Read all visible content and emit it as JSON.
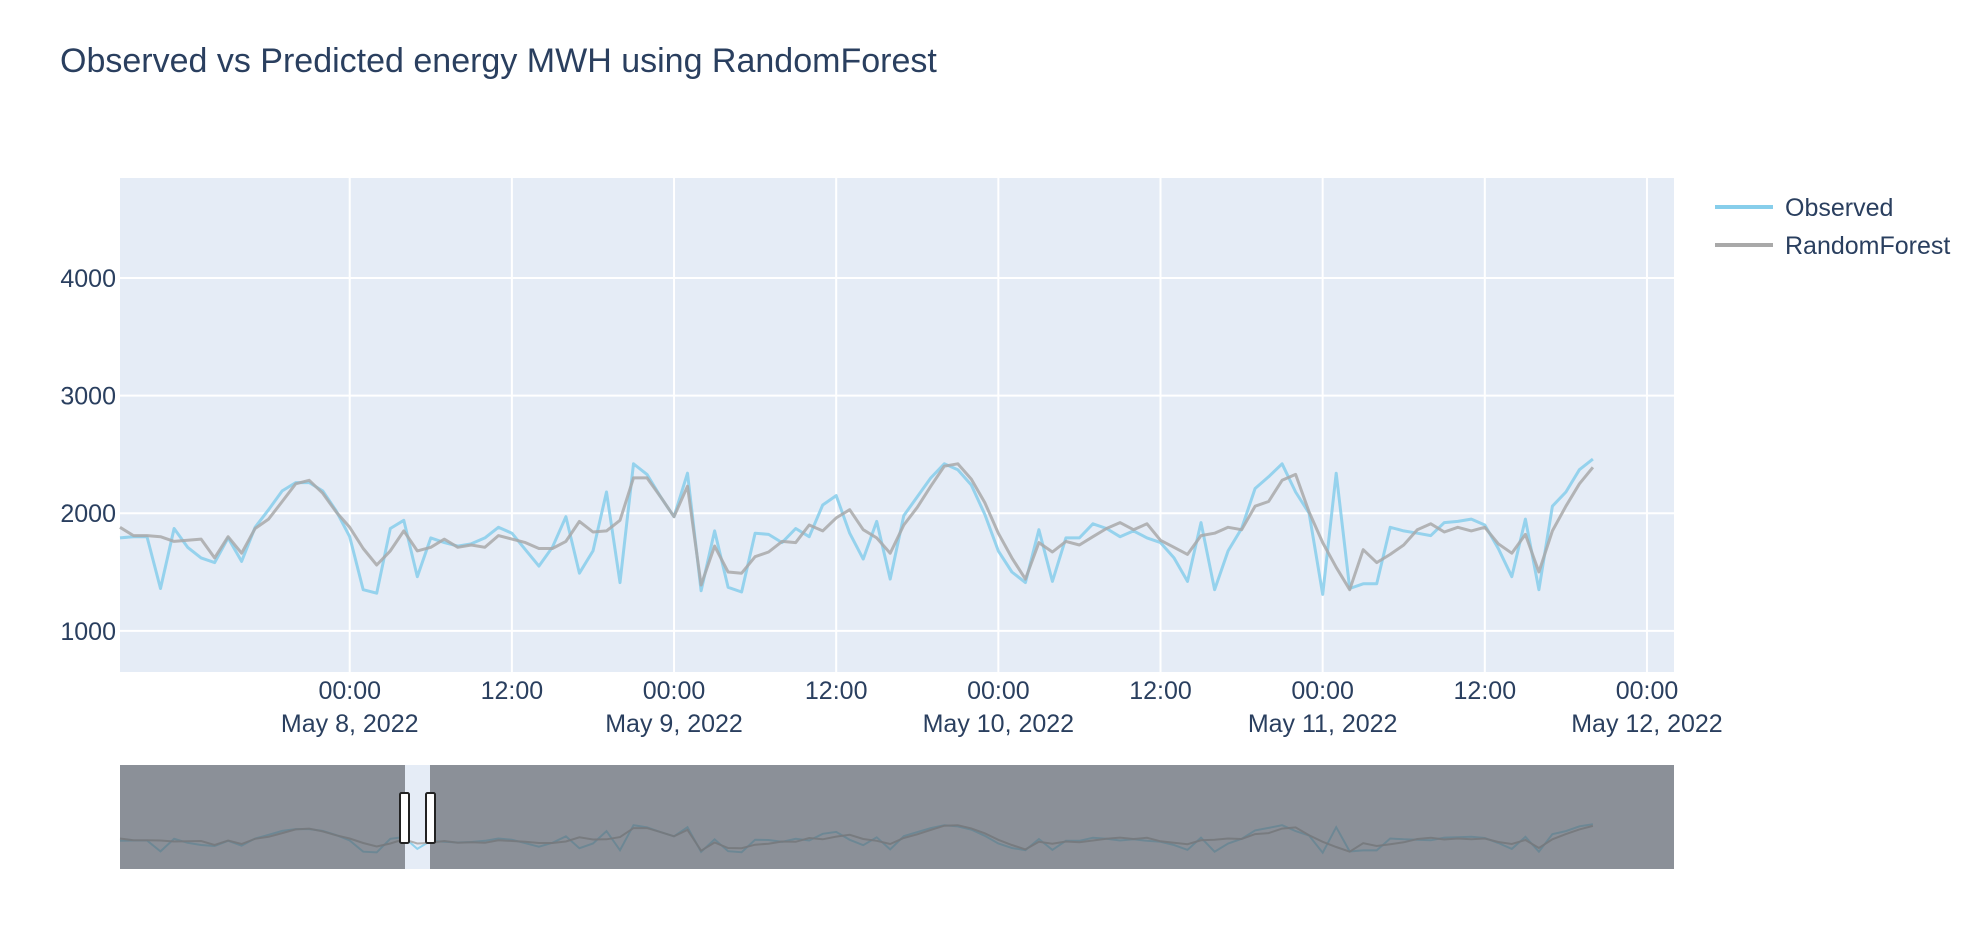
{
  "chart_data": {
    "type": "line",
    "title": "Observed vs Predicted energy MWH using RandomForest",
    "xlabel": "",
    "ylabel": "",
    "x_range": [
      "2022-05-07 07:00",
      "2022-05-12 02:00"
    ],
    "ylim": [
      650,
      4850
    ],
    "y_ticks": [
      1000,
      2000,
      3000,
      4000
    ],
    "x_ticks": [
      {
        "time": "2022-05-08 00:00",
        "label": "00:00",
        "date_label": "May 8, 2022"
      },
      {
        "time": "2022-05-08 12:00",
        "label": "12:00",
        "date_label": ""
      },
      {
        "time": "2022-05-09 00:00",
        "label": "00:00",
        "date_label": "May 9, 2022"
      },
      {
        "time": "2022-05-09 12:00",
        "label": "12:00",
        "date_label": ""
      },
      {
        "time": "2022-05-10 00:00",
        "label": "00:00",
        "date_label": "May 10, 2022"
      },
      {
        "time": "2022-05-10 12:00",
        "label": "12:00",
        "date_label": ""
      },
      {
        "time": "2022-05-11 00:00",
        "label": "00:00",
        "date_label": "May 11, 2022"
      },
      {
        "time": "2022-05-11 12:00",
        "label": "12:00",
        "date_label": ""
      },
      {
        "time": "2022-05-12 00:00",
        "label": "00:00",
        "date_label": "May 12, 2022"
      }
    ],
    "grid": true,
    "legend_position": "top-right",
    "series": [
      {
        "name": "Observed",
        "color": "#87ceeb",
        "points": [
          [
            "2022-05-07 07:00",
            1790
          ],
          [
            "2022-05-07 08:00",
            1800
          ],
          [
            "2022-05-07 09:00",
            1800
          ],
          [
            "2022-05-07 10:00",
            1360
          ],
          [
            "2022-05-07 11:00",
            1870
          ],
          [
            "2022-05-07 12:00",
            1710
          ],
          [
            "2022-05-07 13:00",
            1620
          ],
          [
            "2022-05-07 14:00",
            1580
          ],
          [
            "2022-05-07 15:00",
            1790
          ],
          [
            "2022-05-07 16:00",
            1590
          ],
          [
            "2022-05-07 17:00",
            1880
          ],
          [
            "2022-05-07 18:00",
            2030
          ],
          [
            "2022-05-07 19:00",
            2190
          ],
          [
            "2022-05-07 20:00",
            2260
          ],
          [
            "2022-05-07 21:00",
            2260
          ],
          [
            "2022-05-07 22:00",
            2190
          ],
          [
            "2022-05-07 23:00",
            2020
          ],
          [
            "2022-05-08 00:00",
            1800
          ],
          [
            "2022-05-08 01:00",
            1350
          ],
          [
            "2022-05-08 02:00",
            1320
          ],
          [
            "2022-05-08 03:00",
            1870
          ],
          [
            "2022-05-08 04:00",
            1940
          ],
          [
            "2022-05-08 05:00",
            1460
          ],
          [
            "2022-05-08 06:00",
            1790
          ],
          [
            "2022-05-08 07:00",
            1750
          ],
          [
            "2022-05-08 08:00",
            1720
          ],
          [
            "2022-05-08 09:00",
            1740
          ],
          [
            "2022-05-08 10:00",
            1790
          ],
          [
            "2022-05-08 11:00",
            1880
          ],
          [
            "2022-05-08 12:00",
            1830
          ],
          [
            "2022-05-08 13:00",
            1690
          ],
          [
            "2022-05-08 14:00",
            1550
          ],
          [
            "2022-05-08 15:00",
            1710
          ],
          [
            "2022-05-08 16:00",
            1970
          ],
          [
            "2022-05-08 17:00",
            1490
          ],
          [
            "2022-05-08 18:00",
            1680
          ],
          [
            "2022-05-08 19:00",
            2180
          ],
          [
            "2022-05-08 20:00",
            1410
          ],
          [
            "2022-05-08 21:00",
            2420
          ],
          [
            "2022-05-08 22:00",
            2330
          ],
          [
            "2022-05-08 23:00",
            2140
          ],
          [
            "2022-05-09 00:00",
            1970
          ],
          [
            "2022-05-09 01:00",
            2340
          ],
          [
            "2022-05-09 02:00",
            1340
          ],
          [
            "2022-05-09 03:00",
            1850
          ],
          [
            "2022-05-09 04:00",
            1370
          ],
          [
            "2022-05-09 05:00",
            1330
          ],
          [
            "2022-05-09 06:00",
            1830
          ],
          [
            "2022-05-09 07:00",
            1820
          ],
          [
            "2022-05-09 08:00",
            1750
          ],
          [
            "2022-05-09 09:00",
            1870
          ],
          [
            "2022-05-09 10:00",
            1800
          ],
          [
            "2022-05-09 11:00",
            2070
          ],
          [
            "2022-05-09 12:00",
            2150
          ],
          [
            "2022-05-09 13:00",
            1830
          ],
          [
            "2022-05-09 14:00",
            1610
          ],
          [
            "2022-05-09 15:00",
            1930
          ],
          [
            "2022-05-09 16:00",
            1440
          ],
          [
            "2022-05-09 17:00",
            1980
          ],
          [
            "2022-05-09 18:00",
            2140
          ],
          [
            "2022-05-09 19:00",
            2300
          ],
          [
            "2022-05-09 20:00",
            2420
          ],
          [
            "2022-05-09 21:00",
            2370
          ],
          [
            "2022-05-09 22:00",
            2240
          ],
          [
            "2022-05-09 23:00",
            1990
          ],
          [
            "2022-05-10 00:00",
            1680
          ],
          [
            "2022-05-10 01:00",
            1500
          ],
          [
            "2022-05-10 02:00",
            1410
          ],
          [
            "2022-05-10 03:00",
            1860
          ],
          [
            "2022-05-10 04:00",
            1420
          ],
          [
            "2022-05-10 05:00",
            1790
          ],
          [
            "2022-05-10 06:00",
            1790
          ],
          [
            "2022-05-10 07:00",
            1910
          ],
          [
            "2022-05-10 08:00",
            1870
          ],
          [
            "2022-05-10 09:00",
            1800
          ],
          [
            "2022-05-10 10:00",
            1850
          ],
          [
            "2022-05-10 11:00",
            1790
          ],
          [
            "2022-05-10 12:00",
            1750
          ],
          [
            "2022-05-10 13:00",
            1620
          ],
          [
            "2022-05-10 14:00",
            1420
          ],
          [
            "2022-05-10 15:00",
            1920
          ],
          [
            "2022-05-10 16:00",
            1350
          ],
          [
            "2022-05-10 17:00",
            1680
          ],
          [
            "2022-05-10 18:00",
            1870
          ],
          [
            "2022-05-10 19:00",
            2210
          ],
          [
            "2022-05-10 20:00",
            2310
          ],
          [
            "2022-05-10 21:00",
            2420
          ],
          [
            "2022-05-10 22:00",
            2180
          ],
          [
            "2022-05-10 23:00",
            2000
          ],
          [
            "2022-05-11 00:00",
            1310
          ],
          [
            "2022-05-11 01:00",
            2340
          ],
          [
            "2022-05-11 02:00",
            1360
          ],
          [
            "2022-05-11 03:00",
            1400
          ],
          [
            "2022-05-11 04:00",
            1400
          ],
          [
            "2022-05-11 05:00",
            1880
          ],
          [
            "2022-05-11 06:00",
            1850
          ],
          [
            "2022-05-11 07:00",
            1830
          ],
          [
            "2022-05-11 08:00",
            1810
          ],
          [
            "2022-05-11 09:00",
            1920
          ],
          [
            "2022-05-11 10:00",
            1930
          ],
          [
            "2022-05-11 11:00",
            1950
          ],
          [
            "2022-05-11 12:00",
            1900
          ],
          [
            "2022-05-11 13:00",
            1700
          ],
          [
            "2022-05-11 14:00",
            1460
          ],
          [
            "2022-05-11 15:00",
            1950
          ],
          [
            "2022-05-11 16:00",
            1350
          ],
          [
            "2022-05-11 17:00",
            2060
          ],
          [
            "2022-05-11 18:00",
            2180
          ],
          [
            "2022-05-11 19:00",
            2370
          ],
          [
            "2022-05-11 20:00",
            2460
          ]
        ]
      },
      {
        "name": "RandomForest",
        "color": "#a9a9a9",
        "points": [
          [
            "2022-05-07 07:00",
            1880
          ],
          [
            "2022-05-07 08:00",
            1810
          ],
          [
            "2022-05-07 09:00",
            1810
          ],
          [
            "2022-05-07 10:00",
            1800
          ],
          [
            "2022-05-07 11:00",
            1760
          ],
          [
            "2022-05-07 12:00",
            1770
          ],
          [
            "2022-05-07 13:00",
            1780
          ],
          [
            "2022-05-07 14:00",
            1620
          ],
          [
            "2022-05-07 15:00",
            1800
          ],
          [
            "2022-05-07 16:00",
            1660
          ],
          [
            "2022-05-07 17:00",
            1870
          ],
          [
            "2022-05-07 18:00",
            1950
          ],
          [
            "2022-05-07 19:00",
            2100
          ],
          [
            "2022-05-07 20:00",
            2250
          ],
          [
            "2022-05-07 21:00",
            2280
          ],
          [
            "2022-05-07 22:00",
            2170
          ],
          [
            "2022-05-07 23:00",
            2010
          ],
          [
            "2022-05-08 00:00",
            1880
          ],
          [
            "2022-05-08 01:00",
            1700
          ],
          [
            "2022-05-08 02:00",
            1560
          ],
          [
            "2022-05-08 03:00",
            1680
          ],
          [
            "2022-05-08 04:00",
            1850
          ],
          [
            "2022-05-08 05:00",
            1680
          ],
          [
            "2022-05-08 06:00",
            1710
          ],
          [
            "2022-05-08 07:00",
            1780
          ],
          [
            "2022-05-08 08:00",
            1710
          ],
          [
            "2022-05-08 09:00",
            1730
          ],
          [
            "2022-05-08 10:00",
            1710
          ],
          [
            "2022-05-08 11:00",
            1810
          ],
          [
            "2022-05-08 12:00",
            1780
          ],
          [
            "2022-05-08 13:00",
            1750
          ],
          [
            "2022-05-08 14:00",
            1700
          ],
          [
            "2022-05-08 15:00",
            1700
          ],
          [
            "2022-05-08 16:00",
            1760
          ],
          [
            "2022-05-08 17:00",
            1930
          ],
          [
            "2022-05-08 18:00",
            1840
          ],
          [
            "2022-05-08 19:00",
            1850
          ],
          [
            "2022-05-08 20:00",
            1940
          ],
          [
            "2022-05-08 21:00",
            2300
          ],
          [
            "2022-05-08 22:00",
            2300
          ],
          [
            "2022-05-08 23:00",
            2140
          ],
          [
            "2022-05-09 00:00",
            1970
          ],
          [
            "2022-05-09 01:00",
            2230
          ],
          [
            "2022-05-09 02:00",
            1390
          ],
          [
            "2022-05-09 03:00",
            1720
          ],
          [
            "2022-05-09 04:00",
            1500
          ],
          [
            "2022-05-09 05:00",
            1490
          ],
          [
            "2022-05-09 06:00",
            1630
          ],
          [
            "2022-05-09 07:00",
            1670
          ],
          [
            "2022-05-09 08:00",
            1760
          ],
          [
            "2022-05-09 09:00",
            1750
          ],
          [
            "2022-05-09 10:00",
            1900
          ],
          [
            "2022-05-09 11:00",
            1850
          ],
          [
            "2022-05-09 12:00",
            1960
          ],
          [
            "2022-05-09 13:00",
            2030
          ],
          [
            "2022-05-09 14:00",
            1860
          ],
          [
            "2022-05-09 15:00",
            1790
          ],
          [
            "2022-05-09 16:00",
            1660
          ],
          [
            "2022-05-09 17:00",
            1900
          ],
          [
            "2022-05-09 18:00",
            2050
          ],
          [
            "2022-05-09 19:00",
            2230
          ],
          [
            "2022-05-09 20:00",
            2400
          ],
          [
            "2022-05-09 21:00",
            2420
          ],
          [
            "2022-05-09 22:00",
            2290
          ],
          [
            "2022-05-09 23:00",
            2090
          ],
          [
            "2022-05-10 00:00",
            1830
          ],
          [
            "2022-05-10 01:00",
            1620
          ],
          [
            "2022-05-10 02:00",
            1440
          ],
          [
            "2022-05-10 03:00",
            1750
          ],
          [
            "2022-05-10 04:00",
            1670
          ],
          [
            "2022-05-10 05:00",
            1760
          ],
          [
            "2022-05-10 06:00",
            1730
          ],
          [
            "2022-05-10 07:00",
            1800
          ],
          [
            "2022-05-10 08:00",
            1870
          ],
          [
            "2022-05-10 09:00",
            1920
          ],
          [
            "2022-05-10 10:00",
            1860
          ],
          [
            "2022-05-10 11:00",
            1910
          ],
          [
            "2022-05-10 12:00",
            1770
          ],
          [
            "2022-05-10 13:00",
            1710
          ],
          [
            "2022-05-10 14:00",
            1650
          ],
          [
            "2022-05-10 15:00",
            1810
          ],
          [
            "2022-05-10 16:00",
            1830
          ],
          [
            "2022-05-10 17:00",
            1880
          ],
          [
            "2022-05-10 18:00",
            1860
          ],
          [
            "2022-05-10 19:00",
            2060
          ],
          [
            "2022-05-10 20:00",
            2100
          ],
          [
            "2022-05-10 21:00",
            2280
          ],
          [
            "2022-05-10 22:00",
            2330
          ],
          [
            "2022-05-10 23:00",
            2010
          ],
          [
            "2022-05-11 00:00",
            1750
          ],
          [
            "2022-05-11 01:00",
            1540
          ],
          [
            "2022-05-11 02:00",
            1350
          ],
          [
            "2022-05-11 03:00",
            1690
          ],
          [
            "2022-05-11 04:00",
            1580
          ],
          [
            "2022-05-11 05:00",
            1650
          ],
          [
            "2022-05-11 06:00",
            1730
          ],
          [
            "2022-05-11 07:00",
            1860
          ],
          [
            "2022-05-11 08:00",
            1910
          ],
          [
            "2022-05-11 09:00",
            1840
          ],
          [
            "2022-05-11 10:00",
            1880
          ],
          [
            "2022-05-11 11:00",
            1850
          ],
          [
            "2022-05-11 12:00",
            1880
          ],
          [
            "2022-05-11 13:00",
            1740
          ],
          [
            "2022-05-11 14:00",
            1660
          ],
          [
            "2022-05-11 15:00",
            1820
          ],
          [
            "2022-05-11 16:00",
            1500
          ],
          [
            "2022-05-11 17:00",
            1850
          ],
          [
            "2022-05-11 18:00",
            2060
          ],
          [
            "2022-05-11 19:00",
            2250
          ],
          [
            "2022-05-11 20:00",
            2390
          ]
        ]
      }
    ],
    "rangeslider": {
      "visible": true,
      "selected_range": [
        "2022-05-07 07:00",
        "2022-05-12 02:00"
      ]
    }
  }
}
